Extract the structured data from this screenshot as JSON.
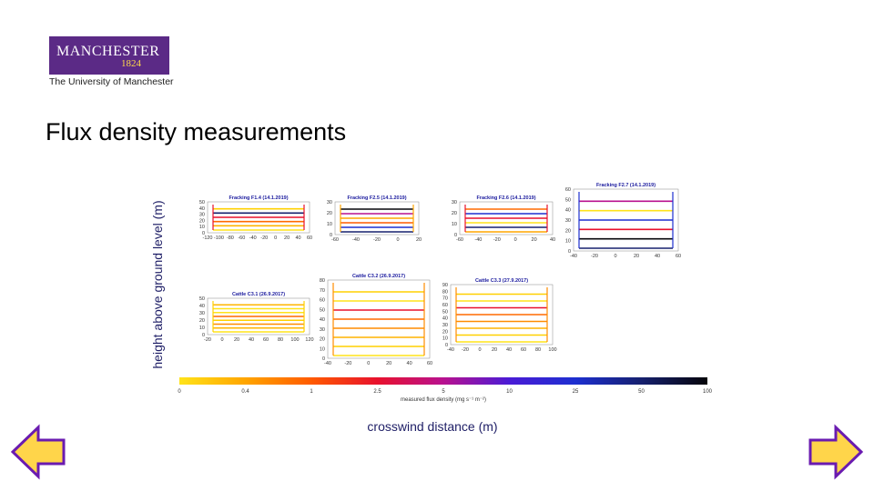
{
  "logo": {
    "word": "MANCHESTER",
    "year": "1824",
    "subtitle": "The University of Manchester"
  },
  "slide": {
    "title": "Flux density measurements"
  },
  "chart_data": {
    "type": "line",
    "ylabel": "height above ground level (m)",
    "xlabel": "crosswind distance (m)",
    "colorbar": {
      "label": "measured flux density (mg s⁻¹ m⁻²)",
      "ticks": [
        "0",
        "0.4",
        "1",
        "2.5",
        "5",
        "10",
        "25",
        "50",
        "100"
      ],
      "colors": [
        "#ffe31a",
        "#ffa500",
        "#ff5a00",
        "#e8112d",
        "#b8118f",
        "#4a1bd6",
        "#1d2fd0",
        "#16206e",
        "#05050a"
      ]
    },
    "panels": [
      {
        "title": "Fracking F1.4 (14.1.2019)",
        "xlim": [
          -120,
          60
        ],
        "ylim": [
          0,
          50
        ],
        "xticks": [
          "-120",
          "-100",
          "-80",
          "-60",
          "-40",
          "-20",
          "0",
          "20",
          "40",
          "60"
        ],
        "yticks": [
          "0",
          "10",
          "20",
          "30",
          "40",
          "50"
        ]
      },
      {
        "title": "Fracking F2.5 (14.1.2019)",
        "xlim": [
          -60,
          20
        ],
        "ylim": [
          0,
          30
        ],
        "xticks": [
          "-60",
          "-40",
          "-20",
          "0",
          "20"
        ],
        "yticks": [
          "0",
          "10",
          "20",
          "30"
        ]
      },
      {
        "title": "Fracking F2.6 (14.1.2019)",
        "xlim": [
          -60,
          40
        ],
        "ylim": [
          0,
          30
        ],
        "xticks": [
          "-60",
          "-40",
          "-20",
          "0",
          "20",
          "40"
        ],
        "yticks": [
          "0",
          "10",
          "20",
          "30"
        ]
      },
      {
        "title": "Fracking F2.7 (14.1.2019)",
        "xlim": [
          -40,
          60
        ],
        "ylim": [
          0,
          60
        ],
        "xticks": [
          "-40",
          "-20",
          "0",
          "20",
          "40",
          "60"
        ],
        "yticks": [
          "0",
          "10",
          "20",
          "30",
          "40",
          "50",
          "60"
        ]
      },
      {
        "title": "Cattle C3.1 (26.9.2017)",
        "xlim": [
          -20,
          120
        ],
        "ylim": [
          0,
          50
        ],
        "xticks": [
          "-20",
          "0",
          "20",
          "40",
          "60",
          "80",
          "100",
          "120"
        ],
        "yticks": [
          "0",
          "10",
          "20",
          "30",
          "40",
          "50"
        ]
      },
      {
        "title": "Cattle C3.2 (26.9.2017)",
        "xlim": [
          -40,
          60
        ],
        "ylim": [
          0,
          80
        ],
        "xticks": [
          "-40",
          "-20",
          "0",
          "20",
          "40",
          "60"
        ],
        "yticks": [
          "0",
          "10",
          "20",
          "30",
          "40",
          "50",
          "60",
          "70",
          "80"
        ]
      },
      {
        "title": "Cattle C3.3 (27.9.2017)",
        "xlim": [
          -40,
          100
        ],
        "ylim": [
          0,
          90
        ],
        "xticks": [
          "-40",
          "-20",
          "0",
          "20",
          "40",
          "60",
          "80",
          "100"
        ],
        "yticks": [
          "0",
          "10",
          "20",
          "30",
          "40",
          "50",
          "60",
          "70",
          "80",
          "90"
        ]
      }
    ]
  },
  "nav": {
    "prev": "previous-slide",
    "next": "next-slide"
  }
}
